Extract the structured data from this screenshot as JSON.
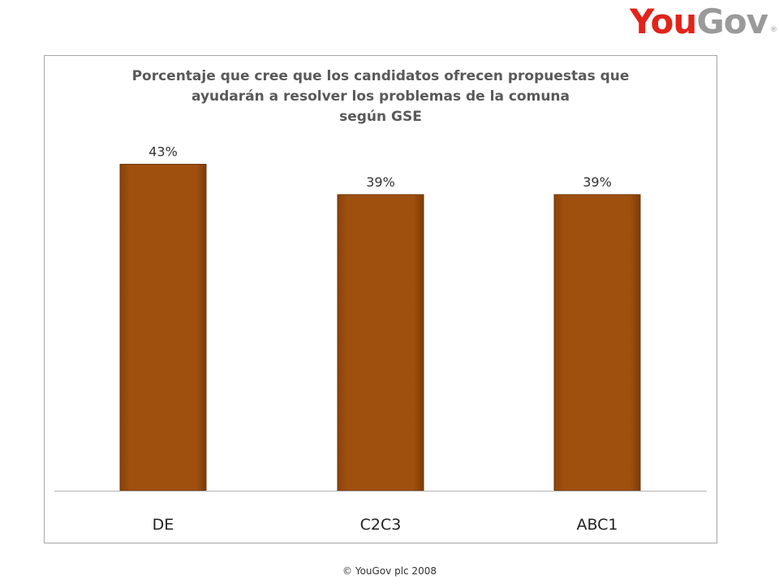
{
  "logo": {
    "part1": "You",
    "part2": "Gov",
    "registered": "®"
  },
  "chart_data": {
    "type": "bar",
    "title_lines": [
      "Porcentaje que cree que los candidatos ofrecen propuestas que",
      "ayudarán a resolver los problemas de la comuna",
      "según GSE"
    ],
    "categories": [
      "DE",
      "C2C3",
      "ABC1"
    ],
    "values": [
      43,
      39,
      39
    ],
    "data_labels": [
      "43%",
      "39%",
      "39%"
    ],
    "ylim": [
      0,
      50
    ],
    "grid": false,
    "legend": "none",
    "bar_color": "#a0500e"
  },
  "footer": {
    "copyright": "© YouGov plc 2008"
  }
}
